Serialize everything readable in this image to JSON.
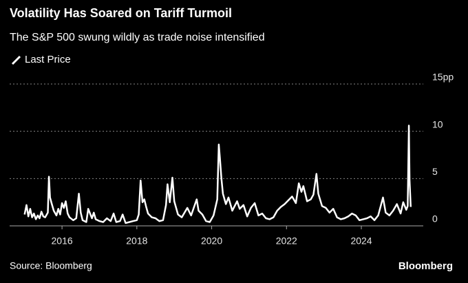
{
  "chart_data": {
    "type": "line",
    "title": "Volatility Has Soared on Tariff Turmoil",
    "subtitle": "The S&P 500 swung wildly as trade noise intensified",
    "source": "Source: Bloomberg",
    "brand": "Bloomberg",
    "x": [
      2015.0,
      2015.05,
      2015.1,
      2015.15,
      2015.2,
      2015.25,
      2015.3,
      2015.35,
      2015.4,
      2015.45,
      2015.5,
      2015.55,
      2015.62,
      2015.65,
      2015.68,
      2015.72,
      2015.78,
      2015.85,
      2015.9,
      2015.95,
      2016.0,
      2016.05,
      2016.1,
      2016.15,
      2016.2,
      2016.3,
      2016.38,
      2016.45,
      2016.5,
      2016.55,
      2016.65,
      2016.7,
      2016.8,
      2016.85,
      2016.9,
      2017.0,
      2017.1,
      2017.2,
      2017.3,
      2017.38,
      2017.45,
      2017.55,
      2017.62,
      2017.7,
      2017.8,
      2017.9,
      2018.0,
      2018.05,
      2018.1,
      2018.15,
      2018.2,
      2018.25,
      2018.3,
      2018.4,
      2018.5,
      2018.6,
      2018.7,
      2018.78,
      2018.82,
      2018.88,
      2018.95,
      2019.0,
      2019.1,
      2019.2,
      2019.35,
      2019.45,
      2019.6,
      2019.65,
      2019.75,
      2019.85,
      2019.95,
      2020.05,
      2020.15,
      2020.19,
      2020.22,
      2020.26,
      2020.3,
      2020.38,
      2020.45,
      2020.55,
      2020.68,
      2020.75,
      2020.85,
      2020.95,
      2021.05,
      2021.15,
      2021.25,
      2021.35,
      2021.45,
      2021.55,
      2021.65,
      2021.75,
      2021.85,
      2021.95,
      2022.05,
      2022.15,
      2022.25,
      2022.33,
      2022.4,
      2022.45,
      2022.55,
      2022.65,
      2022.72,
      2022.8,
      2022.85,
      2022.95,
      2023.05,
      2023.15,
      2023.25,
      2023.35,
      2023.45,
      2023.55,
      2023.65,
      2023.75,
      2023.85,
      2023.95,
      2024.05,
      2024.15,
      2024.25,
      2024.35,
      2024.45,
      2024.58,
      2024.65,
      2024.75,
      2024.85,
      2024.95,
      2025.05,
      2025.12,
      2025.2,
      2025.24,
      2025.27,
      2025.29,
      2025.32
    ],
    "series": [
      {
        "name": "Last Price",
        "color": "#ffffff",
        "values": [
          1.2,
          2.2,
          1.0,
          1.8,
          0.9,
          1.3,
          0.7,
          1.1,
          0.8,
          1.5,
          1.0,
          0.9,
          1.4,
          5.2,
          3.0,
          2.4,
          1.6,
          1.1,
          1.8,
          1.2,
          2.4,
          1.9,
          2.6,
          1.3,
          0.9,
          0.6,
          0.8,
          3.4,
          1.4,
          0.6,
          0.4,
          1.8,
          0.8,
          1.4,
          0.7,
          0.5,
          0.4,
          0.8,
          0.5,
          1.3,
          0.4,
          0.5,
          1.2,
          0.3,
          0.4,
          0.5,
          0.6,
          1.2,
          4.8,
          2.5,
          2.8,
          2.0,
          1.3,
          0.9,
          0.8,
          0.5,
          0.6,
          2.2,
          4.4,
          2.5,
          5.1,
          2.6,
          1.2,
          0.9,
          1.9,
          1.1,
          2.8,
          1.6,
          1.2,
          0.5,
          0.4,
          1.1,
          2.8,
          8.6,
          7.2,
          5.0,
          3.4,
          2.3,
          3.0,
          1.6,
          2.6,
          1.8,
          2.2,
          1.0,
          1.9,
          2.4,
          1.1,
          1.3,
          0.8,
          0.7,
          0.9,
          1.6,
          2.0,
          2.3,
          2.7,
          3.1,
          2.4,
          4.5,
          3.6,
          4.2,
          2.6,
          2.8,
          3.3,
          5.5,
          3.4,
          2.1,
          1.9,
          1.4,
          1.8,
          0.9,
          0.7,
          0.8,
          1.0,
          1.3,
          1.1,
          0.6,
          0.7,
          0.8,
          1.0,
          0.6,
          1.1,
          3.0,
          1.4,
          1.1,
          1.6,
          2.3,
          1.3,
          2.5,
          1.7,
          2.1,
          10.6,
          4.8,
          2.0
        ]
      }
    ],
    "xlim": [
      2014.6,
      2025.6
    ],
    "xticks": [
      2016,
      2018,
      2020,
      2022,
      2024
    ],
    "ylim": [
      0,
      15
    ],
    "yticks": [
      0,
      5,
      10,
      {
        "value": 15,
        "label": "15pp"
      }
    ],
    "grid": true
  }
}
